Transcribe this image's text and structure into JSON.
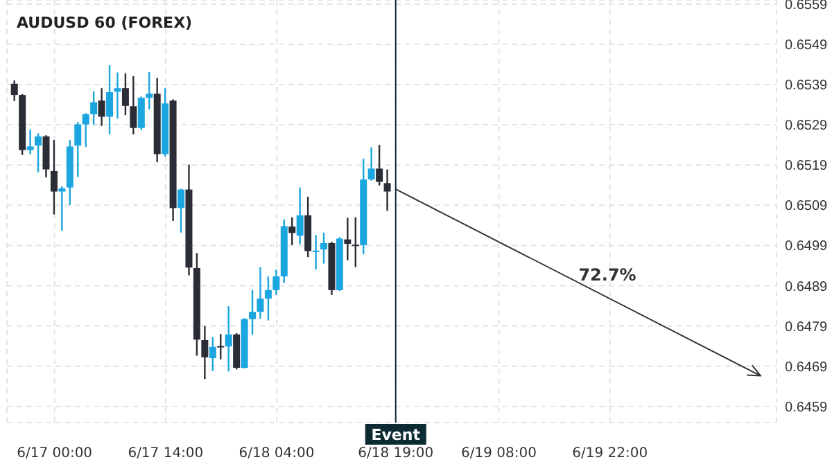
{
  "chart_data": {
    "type": "candlestick",
    "title": "AUDUSD 60 (FOREX)",
    "x": [
      "--06-16T19:00",
      "--06-16T20:00",
      "--06-16T21:00",
      "--06-16T22:00",
      "--06-16T23:00",
      "--06-17T00:00",
      "--06-17T01:00",
      "--06-17T02:00",
      "--06-17T03:00",
      "--06-17T04:00",
      "--06-17T05:00",
      "--06-17T06:00",
      "--06-17T07:00",
      "--06-17T08:00",
      "--06-17T09:00",
      "--06-17T10:00",
      "--06-17T11:00",
      "--06-17T12:00",
      "--06-17T13:00",
      "--06-17T14:00",
      "--06-17T15:00",
      "--06-17T16:00",
      "--06-17T17:00",
      "--06-17T18:00",
      "--06-17T19:00",
      "--06-17T20:00",
      "--06-17T21:00",
      "--06-17T22:00",
      "--06-17T23:00",
      "--06-18T00:00",
      "--06-18T01:00",
      "--06-18T02:00",
      "--06-18T03:00",
      "--06-18T04:00",
      "--06-18T05:00",
      "--06-18T06:00",
      "--06-18T07:00",
      "--06-18T08:00",
      "--06-18T09:00",
      "--06-18T10:00",
      "--06-18T11:00",
      "--06-18T12:00",
      "--06-18T13:00",
      "--06-18T14:00",
      "--06-18T15:00",
      "--06-18T16:00",
      "--06-18T17:00",
      "--06-18T18:00"
    ],
    "ohlc": [
      [
        0.65392,
        0.654,
        0.65349,
        0.65364
      ],
      [
        0.65364,
        0.65366,
        0.65215,
        0.65227
      ],
      [
        0.65227,
        0.65278,
        0.65217,
        0.65236
      ],
      [
        0.65238,
        0.65269,
        0.65172,
        0.65261
      ],
      [
        0.65261,
        0.65264,
        0.65159,
        0.65179
      ],
      [
        0.65175,
        0.65252,
        0.65067,
        0.65124
      ],
      [
        0.65124,
        0.65137,
        0.65027,
        0.65132
      ],
      [
        0.65134,
        0.65252,
        0.65091,
        0.65236
      ],
      [
        0.65238,
        0.65297,
        0.6516,
        0.65291
      ],
      [
        0.65291,
        0.65319,
        0.65235,
        0.65316
      ],
      [
        0.65316,
        0.65373,
        0.65289,
        0.65346
      ],
      [
        0.6535,
        0.65381,
        0.65287,
        0.6531
      ],
      [
        0.6531,
        0.65438,
        0.65266,
        0.65371
      ],
      [
        0.65372,
        0.6542,
        0.65305,
        0.65381
      ],
      [
        0.65381,
        0.65418,
        0.65314,
        0.65337
      ],
      [
        0.65336,
        0.65411,
        0.65266,
        0.65282
      ],
      [
        0.65282,
        0.6536,
        0.65277,
        0.65357
      ],
      [
        0.65357,
        0.65421,
        0.65328,
        0.65367
      ],
      [
        0.65367,
        0.65406,
        0.65197,
        0.65217
      ],
      [
        0.65217,
        0.65381,
        0.65211,
        0.65343
      ],
      [
        0.6535,
        0.65353,
        0.65051,
        0.65083
      ],
      [
        0.65083,
        0.65131,
        0.65022,
        0.65129
      ],
      [
        0.65129,
        0.65191,
        0.64916,
        0.64935
      ],
      [
        0.64934,
        0.64971,
        0.64716,
        0.64756
      ],
      [
        0.64755,
        0.6479,
        0.64658,
        0.64712
      ],
      [
        0.6471,
        0.64762,
        0.64678,
        0.64738
      ],
      [
        0.6474,
        0.6477,
        0.64707,
        0.6474
      ],
      [
        0.64739,
        0.64839,
        0.64677,
        0.64769
      ],
      [
        0.64769,
        0.64772,
        0.64682,
        0.64686
      ],
      [
        0.64686,
        0.6481,
        0.64684,
        0.64807
      ],
      [
        0.64807,
        0.64879,
        0.64768,
        0.64825
      ],
      [
        0.64825,
        0.64936,
        0.64808,
        0.64858
      ],
      [
        0.64858,
        0.64913,
        0.64804,
        0.64879
      ],
      [
        0.64879,
        0.6493,
        0.64867,
        0.64913
      ],
      [
        0.64913,
        0.65055,
        0.64897,
        0.65038
      ],
      [
        0.65037,
        0.6506,
        0.64991,
        0.65021
      ],
      [
        0.65014,
        0.65134,
        0.64993,
        0.65065
      ],
      [
        0.65065,
        0.65111,
        0.64961,
        0.64976
      ],
      [
        0.64977,
        0.65016,
        0.6493,
        0.64977
      ],
      [
        0.6498,
        0.65022,
        0.64945,
        0.64996
      ],
      [
        0.64996,
        0.64999,
        0.64867,
        0.64879
      ],
      [
        0.64879,
        0.65011,
        0.64877,
        0.65007
      ],
      [
        0.65005,
        0.65059,
        0.64953,
        0.64994
      ],
      [
        0.64992,
        0.6506,
        0.64936,
        0.64992
      ],
      [
        0.64991,
        0.65206,
        0.64968,
        0.65154
      ],
      [
        0.65154,
        0.65234,
        0.65151,
        0.65181
      ],
      [
        0.65181,
        0.6524,
        0.65139,
        0.65148
      ],
      [
        0.65145,
        0.65179,
        0.65076,
        0.65124
      ]
    ],
    "colors": [
      "#2b2d36",
      "#2b2d36",
      "#1ba6e0",
      "#1ba6e0",
      "#2b2d36",
      "#2b2d36",
      "#1ba6e0",
      "#1ba6e0",
      "#1ba6e0",
      "#1ba6e0",
      "#1ba6e0",
      "#2b2d36",
      "#1ba6e0",
      "#1ba6e0",
      "#2b2d36",
      "#2b2d36",
      "#1ba6e0",
      "#1ba6e0",
      "#2b2d36",
      "#1ba6e0",
      "#2b2d36",
      "#1ba6e0",
      "#2b2d36",
      "#2b2d36",
      "#2b2d36",
      "#1ba6e0",
      "#2b2d36",
      "#1ba6e0",
      "#2b2d36",
      "#1ba6e0",
      "#1ba6e0",
      "#1ba6e0",
      "#1ba6e0",
      "#1ba6e0",
      "#1ba6e0",
      "#2b2d36",
      "#1ba6e0",
      "#2b2d36",
      "#1ba6e0",
      "#1ba6e0",
      "#2b2d36",
      "#1ba6e0",
      "#2b2d36",
      "#2b2d36",
      "#1ba6e0",
      "#1ba6e0",
      "#2b2d36",
      "#2b2d36"
    ],
    "series": [
      {
        "type": "line",
        "color": "#333333",
        "x": [
          "--06-18T19:00",
          "--06-20T17:00"
        ],
        "values": [
          0.6513,
          0.64666
        ]
      }
    ],
    "annotations": [
      "72.7%"
    ],
    "ref_lines": [
      {
        "axis": "x",
        "value": "--06-18T19:00",
        "label": "Event",
        "color": "#0d2b33"
      }
    ],
    "xlim": [
      "--06-16T18:00",
      "--06-20T19:00"
    ],
    "xticks": [
      {
        "value": "--06-17T00:00",
        "label": "6/17 00:00"
      },
      {
        "value": "--06-17T14:00",
        "label": "6/17 14:00"
      },
      {
        "value": "--06-18T04:00",
        "label": "6/18 04:00"
      },
      {
        "value": "--06-18T19:00",
        "label": "6/18 19:00"
      },
      {
        "value": "--06-19T08:00",
        "label": "6/19 08:00"
      },
      {
        "value": "--06-19T22:00",
        "label": "6/19 22:00"
      }
    ],
    "ylim": [
      0.6455,
      0.656
    ],
    "yticks": [
      0.6459,
      0.6469,
      0.6479,
      0.6489,
      0.6499,
      0.6509,
      0.6519,
      0.6529,
      0.6539,
      0.6549,
      0.6559
    ],
    "grid": true
  }
}
